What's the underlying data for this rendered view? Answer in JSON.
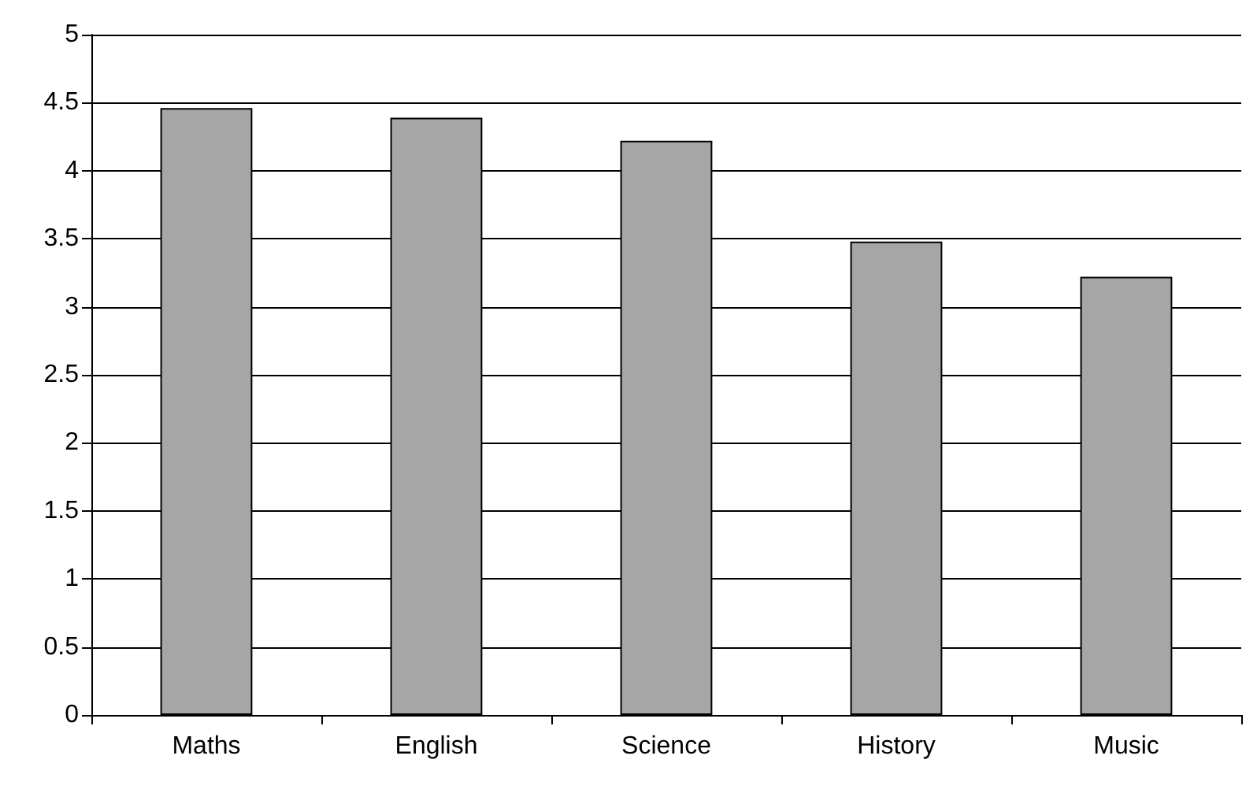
{
  "chart_data": {
    "type": "bar",
    "categories": [
      "Maths",
      "English",
      "Science",
      "History",
      "Music"
    ],
    "values": [
      4.46,
      4.39,
      4.22,
      3.48,
      3.22
    ],
    "color": "#a6a6a6",
    "ylim": [
      0,
      5
    ],
    "yticks": [
      0,
      0.5,
      1,
      1.5,
      2,
      2.5,
      3,
      3.5,
      4,
      4.5,
      5
    ],
    "grid": "y"
  }
}
